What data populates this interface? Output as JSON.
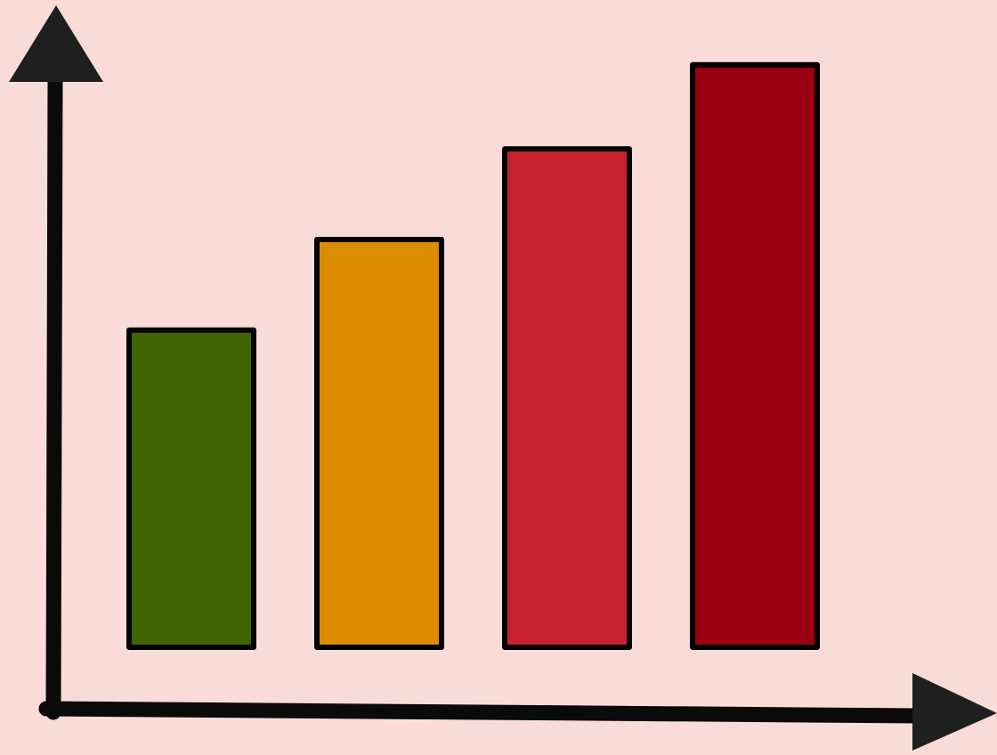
{
  "colors": {
    "background": "#f9dcd8",
    "axis": "#0a0a0a",
    "arrowhead": "#1f1f1f",
    "bar_outline": "#000000"
  },
  "chart_data": {
    "type": "bar",
    "title": "",
    "xlabel": "",
    "ylabel": "",
    "grid": false,
    "legend": "none",
    "ylim": [
      0,
      100
    ],
    "values": [
      49,
      63,
      77,
      90
    ],
    "bar_colors": [
      "#416400",
      "#dc8c00",
      "#c72132",
      "#990010"
    ]
  }
}
